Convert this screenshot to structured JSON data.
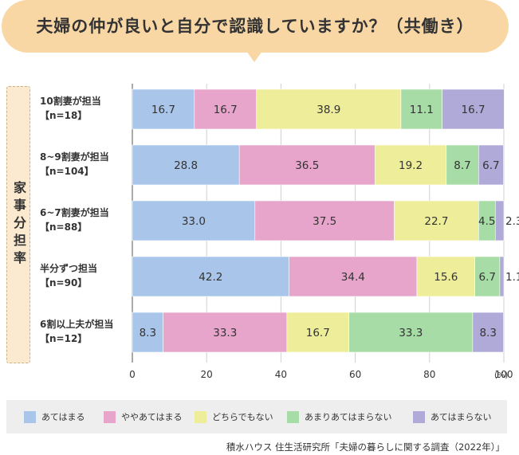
{
  "title": "夫婦の仲が良いと自分で認識していますか？（共働き）",
  "side_label": "家事分担率",
  "source": "積水ハウス 住生活研究所「夫婦の暮らしに関する調査（2022年）」",
  "x_unit": "(%)",
  "chart_data": {
    "type": "bar",
    "orientation": "horizontal",
    "stacked": true,
    "title": "夫婦の仲が良いと自分で認識していますか？（共働き）",
    "ylabel": "家事分担率",
    "categories": [
      {
        "label": "10割妻が担当",
        "n": "【n=18】"
      },
      {
        "label": "8~9割妻が担当",
        "n": "【n=104】"
      },
      {
        "label": "6~7割妻が担当",
        "n": "【n=88】"
      },
      {
        "label": "半分ずつ担当",
        "n": "【n=90】"
      },
      {
        "label": "6割以上夫が担当",
        "n": "【n=12】"
      }
    ],
    "series": [
      {
        "name": "あてはまる",
        "color": "#a9c6ea",
        "values": [
          16.7,
          28.8,
          33.0,
          42.2,
          8.3
        ]
      },
      {
        "name": "ややあてはまる",
        "color": "#e8a5cb",
        "values": [
          16.7,
          36.5,
          37.5,
          34.4,
          33.3
        ]
      },
      {
        "name": "どちらでもない",
        "color": "#eeee9a",
        "values": [
          38.9,
          19.2,
          22.7,
          15.6,
          16.7
        ]
      },
      {
        "name": "あまりあてはまらない",
        "color": "#a8dca6",
        "values": [
          11.1,
          8.7,
          4.5,
          6.7,
          33.3
        ]
      },
      {
        "name": "あてはまらない",
        "color": "#b0aad8",
        "values": [
          16.7,
          6.7,
          2.3,
          1.1,
          8.3
        ]
      }
    ],
    "value_labels": [
      [
        "16.7",
        "16.7",
        "38.9",
        "11.1",
        "16.7"
      ],
      [
        "28.8",
        "36.5",
        "19.2",
        "8.7",
        "6.7"
      ],
      [
        "33.0",
        "37.5",
        "22.7",
        "4.5",
        "2.3"
      ],
      [
        "42.2",
        "34.4",
        "15.6",
        "6.7",
        "1.1"
      ],
      [
        "8.3",
        "33.3",
        "16.7",
        "33.3",
        "8.3"
      ]
    ],
    "xlim": [
      0,
      100
    ],
    "xticks": [
      "0",
      "20",
      "40",
      "60",
      "80",
      "100"
    ],
    "grid": true,
    "legend_position": "bottom"
  }
}
